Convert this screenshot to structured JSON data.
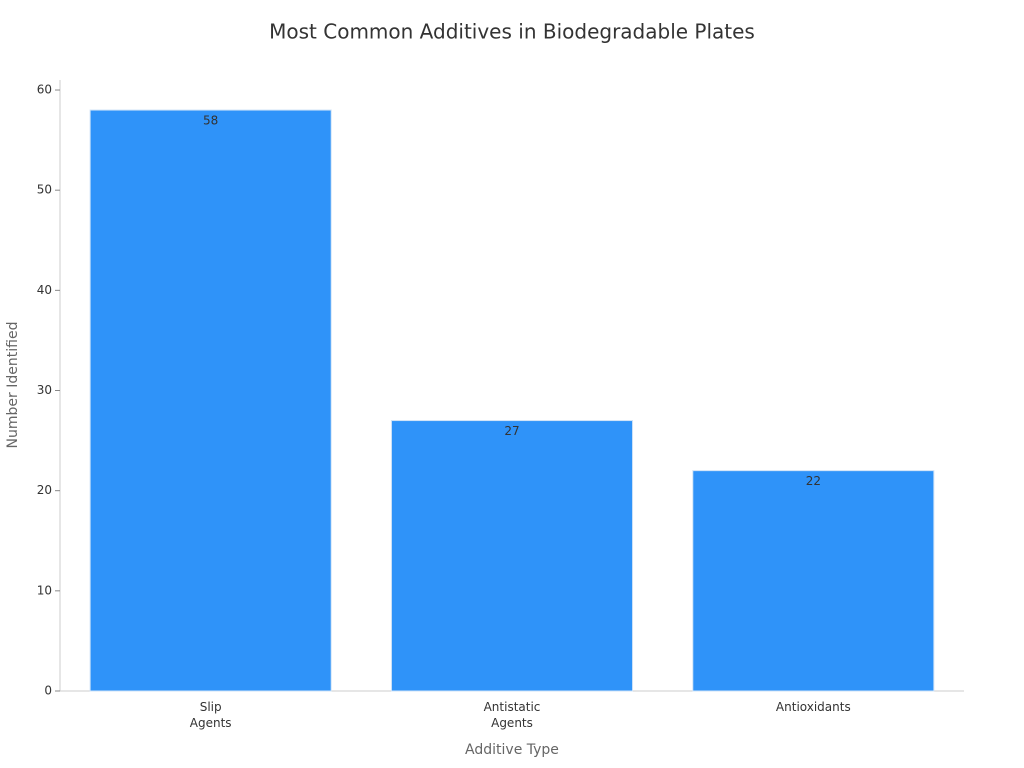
{
  "chart_data": {
    "type": "bar",
    "title": "Most Common Additives in Biodegradable Plates",
    "x_label": "Additive Type",
    "y_label": "Number Identified",
    "categories": [
      "Slip\nAgents",
      "Antistatic\nAgents",
      "Antioxidants"
    ],
    "values": [
      58,
      27,
      22
    ],
    "color": "#2f93f9",
    "ylim": [
      0,
      61
    ],
    "yticks": [
      0,
      10,
      20,
      30,
      40,
      50,
      60
    ],
    "grid": false
  }
}
